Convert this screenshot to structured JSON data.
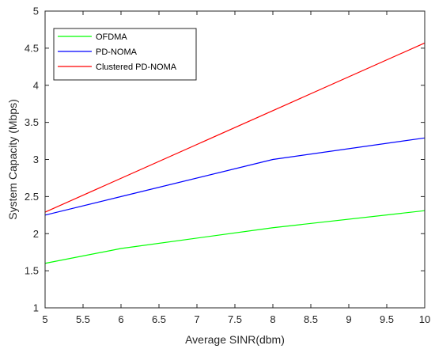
{
  "chart_data": {
    "type": "line",
    "title": "",
    "xlabel": "Average SINR(dbm)",
    "ylabel": "System Capacity (Mbps)",
    "xlim": [
      5,
      10
    ],
    "ylim": [
      1,
      5
    ],
    "xticks": [
      5,
      5.5,
      6,
      6.5,
      7,
      7.5,
      8,
      8.5,
      9,
      9.5,
      10
    ],
    "xtick_labels": [
      "5",
      "5.5",
      "6",
      "6.5",
      "7",
      "7.5",
      "8",
      "8.5",
      "9",
      "9.5",
      "10"
    ],
    "yticks": [
      1,
      1.5,
      2,
      2.5,
      3,
      3.5,
      4,
      4.5,
      5
    ],
    "ytick_labels": [
      "1",
      "1.5",
      "2",
      "2.5",
      "3",
      "3.5",
      "4",
      "4.5",
      "5"
    ],
    "grid": false,
    "legend_position": "top-left",
    "series": [
      {
        "name": "OFDMA",
        "color": "#00ff00",
        "x": [
          5,
          6,
          8,
          10
        ],
        "y": [
          1.6,
          1.8,
          2.08,
          2.31
        ]
      },
      {
        "name": "PD-NOMA",
        "color": "#0000ff",
        "x": [
          5,
          6,
          8,
          10
        ],
        "y": [
          2.25,
          2.5,
          3.0,
          3.29
        ]
      },
      {
        "name": "Clustered PD-NOMA",
        "color": "#ff0000",
        "x": [
          5,
          10
        ],
        "y": [
          2.29,
          4.57
        ]
      }
    ]
  }
}
